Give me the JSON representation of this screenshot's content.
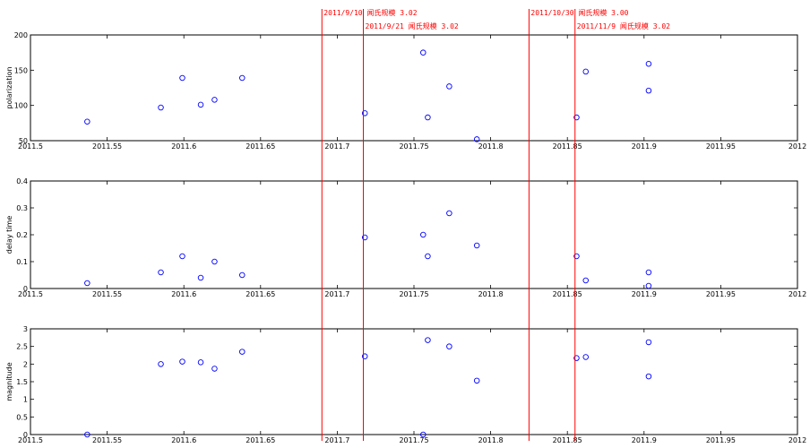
{
  "chart_data": [
    {
      "type": "scatter",
      "ylabel": "polarization",
      "xlim": [
        2011.5,
        2012
      ],
      "ylim": [
        50,
        200
      ],
      "xticks": [
        "2011.5",
        "2011.55",
        "2011.6",
        "2011.65",
        "2011.7",
        "2011.75",
        "2011.8",
        "2011.85",
        "2011.9",
        "2011.95",
        "2012"
      ],
      "yticks": [
        "50",
        "100",
        "150",
        "200"
      ],
      "marker_color": "#0000ff",
      "points": [
        {
          "x": 2011.537,
          "y": 77
        },
        {
          "x": 2011.585,
          "y": 97
        },
        {
          "x": 2011.599,
          "y": 139
        },
        {
          "x": 2011.611,
          "y": 101
        },
        {
          "x": 2011.62,
          "y": 108
        },
        {
          "x": 2011.638,
          "y": 139
        },
        {
          "x": 2011.718,
          "y": 89
        },
        {
          "x": 2011.756,
          "y": 175
        },
        {
          "x": 2011.759,
          "y": 83
        },
        {
          "x": 2011.773,
          "y": 127
        },
        {
          "x": 2011.791,
          "y": 52
        },
        {
          "x": 2011.856,
          "y": 83
        },
        {
          "x": 2011.862,
          "y": 148
        },
        {
          "x": 2011.903,
          "y": 159
        },
        {
          "x": 2011.903,
          "y": 121
        }
      ]
    },
    {
      "type": "scatter",
      "ylabel": "delay time",
      "xlim": [
        2011.5,
        2012
      ],
      "ylim": [
        0,
        0.4
      ],
      "xticks": [
        "2011.5",
        "2011.55",
        "2011.6",
        "2011.65",
        "2011.7",
        "2011.75",
        "2011.8",
        "2011.85",
        "2011.9",
        "2011.95",
        "2012"
      ],
      "yticks": [
        "0",
        "0.1",
        "0.2",
        "0.3",
        "0.4"
      ],
      "marker_color": "#0000ff",
      "points": [
        {
          "x": 2011.537,
          "y": 0.02
        },
        {
          "x": 2011.585,
          "y": 0.06
        },
        {
          "x": 2011.599,
          "y": 0.12
        },
        {
          "x": 2011.611,
          "y": 0.04
        },
        {
          "x": 2011.62,
          "y": 0.1
        },
        {
          "x": 2011.638,
          "y": 0.05
        },
        {
          "x": 2011.718,
          "y": 0.19
        },
        {
          "x": 2011.756,
          "y": 0.2
        },
        {
          "x": 2011.759,
          "y": 0.12
        },
        {
          "x": 2011.773,
          "y": 0.28
        },
        {
          "x": 2011.791,
          "y": 0.16
        },
        {
          "x": 2011.856,
          "y": 0.12
        },
        {
          "x": 2011.862,
          "y": 0.03
        },
        {
          "x": 2011.903,
          "y": 0.06
        },
        {
          "x": 2011.903,
          "y": 0.01
        }
      ]
    },
    {
      "type": "scatter",
      "ylabel": "magnitude",
      "xlim": [
        2011.5,
        2012
      ],
      "ylim": [
        0,
        3
      ],
      "xticks": [
        "2011.5",
        "2011.55",
        "2011.6",
        "2011.65",
        "2011.7",
        "2011.75",
        "2011.8",
        "2011.85",
        "2011.9",
        "2011.95",
        "2012"
      ],
      "yticks": [
        "0",
        "0.5",
        "1",
        "1.5",
        "2",
        "2.5",
        "3"
      ],
      "marker_color": "#0000ff",
      "points": [
        {
          "x": 2011.537,
          "y": 0
        },
        {
          "x": 2011.585,
          "y": 2.0
        },
        {
          "x": 2011.599,
          "y": 2.07
        },
        {
          "x": 2011.611,
          "y": 2.05
        },
        {
          "x": 2011.62,
          "y": 1.87
        },
        {
          "x": 2011.638,
          "y": 2.35
        },
        {
          "x": 2011.718,
          "y": 2.22
        },
        {
          "x": 2011.756,
          "y": 0
        },
        {
          "x": 2011.759,
          "y": 2.68
        },
        {
          "x": 2011.773,
          "y": 2.5
        },
        {
          "x": 2011.791,
          "y": 1.53
        },
        {
          "x": 2011.856,
          "y": 2.17
        },
        {
          "x": 2011.862,
          "y": 2.2
        },
        {
          "x": 2011.903,
          "y": 2.62
        },
        {
          "x": 2011.903,
          "y": 1.65
        }
      ]
    }
  ],
  "events": [
    {
      "x": 2011.69,
      "label": "2011/9/10 闻氏规模 3.02",
      "row": 0
    },
    {
      "x": 2011.717,
      "label": "2011/9/21 闻氏规模 3.02",
      "row": 1
    },
    {
      "x": 2011.825,
      "label": "2011/10/30 闻氏规模 3.00",
      "row": 0
    },
    {
      "x": 2011.855,
      "label": "2011/11/9 闻氏规模 3.02",
      "row": 1
    }
  ],
  "event_color": "#ff0000"
}
